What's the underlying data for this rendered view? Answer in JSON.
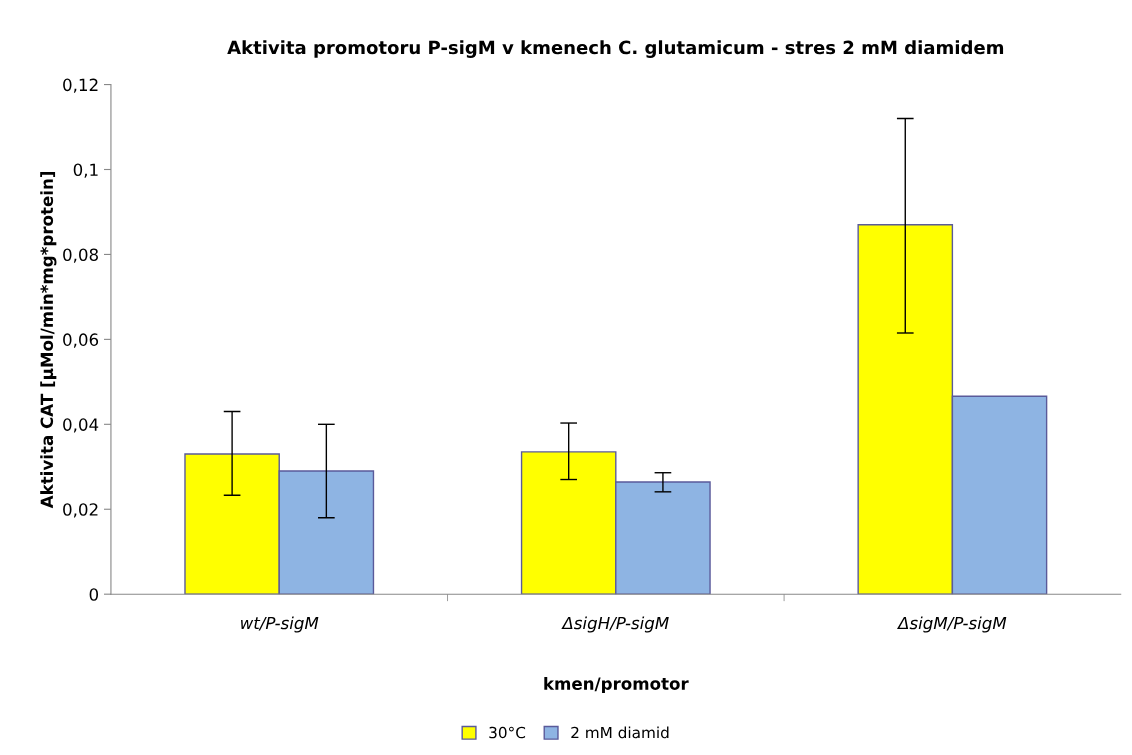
{
  "chart_data": {
    "type": "bar",
    "title": "Aktivita promotoru P-sigM v kmenech C. glutamicum - stres 2 mM diamidem",
    "xlabel": "kmen/promotor",
    "ylabel": "Aktivita CAT [µMol/min*mg*protein]",
    "categories": [
      "wt/P-sigM",
      "ΔsigH/P-sigM",
      "ΔsigM/P-sigM"
    ],
    "series": [
      {
        "name": "30°C",
        "color": "#ffff00",
        "values": [
          0.033,
          0.0335,
          0.087
        ],
        "errors": [
          [
            0.0233,
            0.043
          ],
          [
            0.027,
            0.0403
          ],
          [
            0.0615,
            0.112
          ]
        ]
      },
      {
        "name": "2 mM diamid",
        "color": "#8eb4e3",
        "values": [
          0.029,
          0.0264,
          0.0466
        ],
        "errors": [
          [
            0.018,
            0.04
          ],
          [
            0.0241,
            0.0286
          ],
          null
        ]
      }
    ],
    "ylim": [
      0,
      0.12
    ],
    "yticks": [
      0,
      {
        "value": 0.02,
        "label": "0,02"
      },
      {
        "value": 0.04,
        "label": "0,04"
      },
      {
        "value": 0.06,
        "label": "0,06"
      },
      {
        "value": 0.08,
        "label": "0,08"
      },
      {
        "value": 0.1,
        "label": "0,1"
      },
      {
        "value": 0.12,
        "label": "0,12"
      }
    ],
    "grid": false,
    "legend": "bottom"
  }
}
